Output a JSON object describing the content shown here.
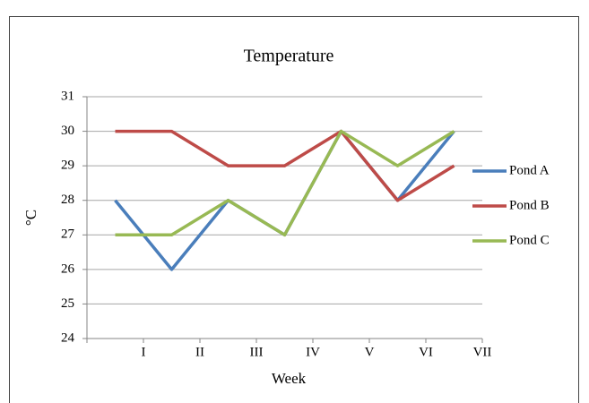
{
  "chart_data": {
    "type": "line",
    "title": "Temperature",
    "x_label": "Week",
    "y_label": "°C",
    "categories": [
      "I",
      "II",
      "III",
      "IV",
      "V",
      "VI",
      "VII"
    ],
    "series": [
      {
        "name": "Pond A",
        "color": "#4a7ebb",
        "values": [
          28,
          26,
          28,
          27,
          30,
          28,
          30
        ]
      },
      {
        "name": "Pond B",
        "color": "#be4b48",
        "values": [
          30,
          30,
          29,
          29,
          30,
          28,
          29
        ]
      },
      {
        "name": "Pond C",
        "color": "#98b954",
        "values": [
          27,
          27,
          28,
          27,
          30,
          29,
          30
        ]
      }
    ],
    "ylim": [
      24,
      31
    ],
    "yticks": [
      24,
      25,
      26,
      27,
      28,
      29,
      30,
      31
    ],
    "grid": true,
    "legend": "right"
  }
}
